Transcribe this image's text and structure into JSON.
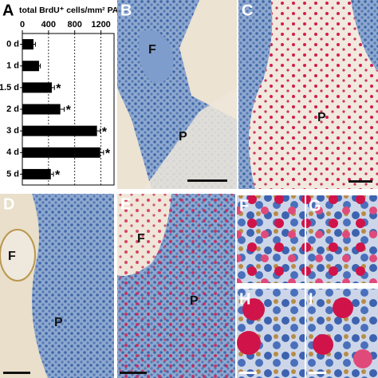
{
  "chart_data": {
    "type": "hbar",
    "title": "total BrdU⁺ cells/mm² PALS",
    "categories": [
      "0 d",
      "1 d",
      "1.5 d",
      "2 d",
      "3 d",
      "4 d",
      "5 d"
    ],
    "values": [
      170,
      255,
      450,
      580,
      1140,
      1190,
      435
    ],
    "errors": [
      30,
      20,
      40,
      60,
      50,
      50,
      40
    ],
    "color": "#000000",
    "xlim": [
      0,
      1400
    ],
    "xticks": [
      0,
      400,
      800,
      1200
    ],
    "grid": true,
    "annotations": [
      {
        "category": 2,
        "text": "*"
      },
      {
        "category": 3,
        "text": "*"
      },
      {
        "category": 4,
        "text": "*"
      },
      {
        "category": 5,
        "text": "*"
      },
      {
        "category": 6,
        "text": "*"
      }
    ]
  },
  "panels": [
    "A",
    "B",
    "C",
    "D",
    "E",
    "F",
    "G",
    "H",
    "I"
  ],
  "regions": {
    "b": [
      "F",
      "P"
    ],
    "c": [
      "P"
    ],
    "d": [
      "F",
      "P"
    ],
    "e": [
      "F",
      "P"
    ]
  }
}
